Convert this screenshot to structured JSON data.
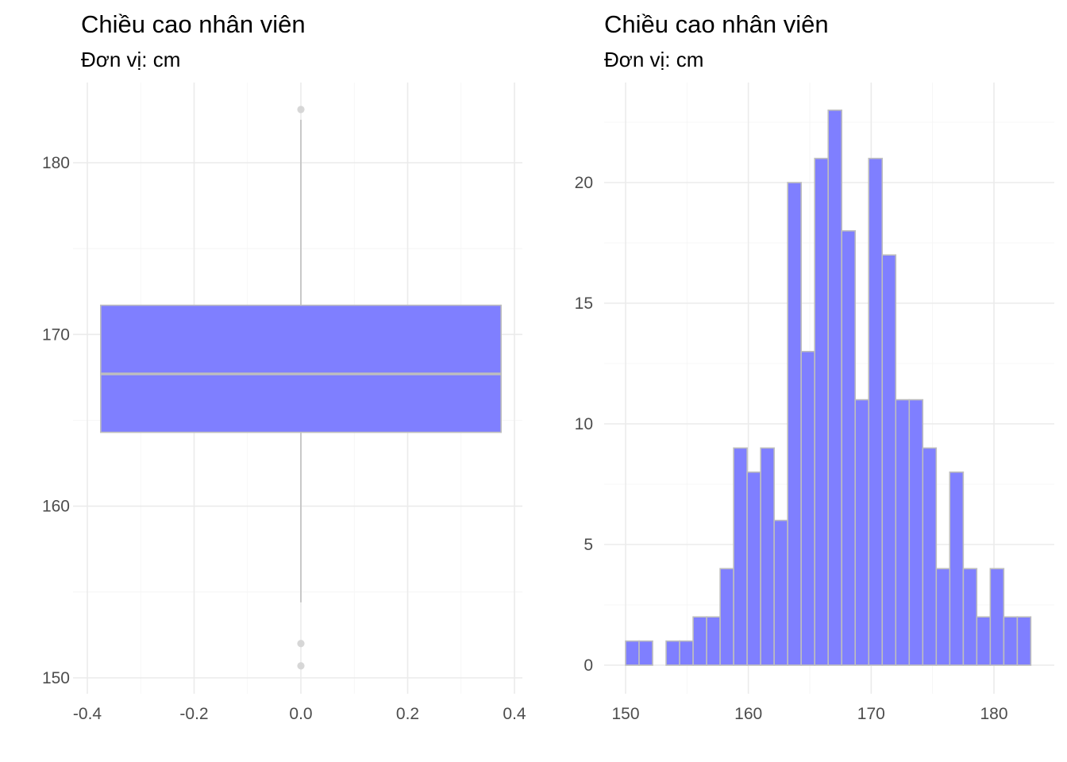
{
  "chart_data": [
    {
      "type": "box",
      "title": "Chiều cao nhân viên",
      "subtitle": "Đơn vị: cm",
      "xlabel": "",
      "ylabel": "",
      "xlim": [
        -0.4,
        0.4
      ],
      "ylim": [
        150,
        183
      ],
      "x_ticks": [
        -0.4,
        -0.2,
        0.0,
        0.2,
        0.4
      ],
      "x_tick_labels": [
        "-0.4",
        "-0.2",
        "0.0",
        "0.2",
        "0.4"
      ],
      "y_ticks": [
        150,
        160,
        170,
        180
      ],
      "y_tick_labels": [
        "150",
        "160",
        "170",
        "180"
      ],
      "grid": true,
      "box": {
        "x_center": 0.0,
        "x_range": [
          -0.375,
          0.375
        ],
        "q1": 164.3,
        "median": 167.7,
        "q3": 171.7,
        "whisker_low": 154.4,
        "whisker_high": 182.5,
        "outliers": [
          183.1,
          152.0,
          150.7
        ]
      },
      "fill_color": "#7f7fff",
      "line_color": "#bebebe"
    },
    {
      "type": "bar",
      "subtype": "histogram",
      "title": "Chiều cao nhân viên",
      "subtitle": "Đơn vị: cm",
      "xlabel": "",
      "ylabel": "",
      "xlim": [
        150,
        183
      ],
      "ylim": [
        0,
        23
      ],
      "x_ticks": [
        150,
        160,
        170,
        180
      ],
      "x_tick_labels": [
        "150",
        "160",
        "170",
        "180"
      ],
      "y_ticks": [
        0,
        5,
        10,
        15,
        20
      ],
      "y_tick_labels": [
        "0",
        "5",
        "10",
        "15",
        "20"
      ],
      "grid": true,
      "bin_start": 150,
      "bin_width": 1.1,
      "counts": [
        1,
        1,
        0,
        1,
        1,
        2,
        2,
        4,
        9,
        8,
        9,
        6,
        20,
        13,
        21,
        23,
        18,
        11,
        21,
        17,
        11,
        11,
        9,
        4,
        8,
        4,
        2,
        4,
        2,
        2
      ],
      "fill_color": "#7f7fff",
      "line_color": "#bebebe"
    }
  ]
}
